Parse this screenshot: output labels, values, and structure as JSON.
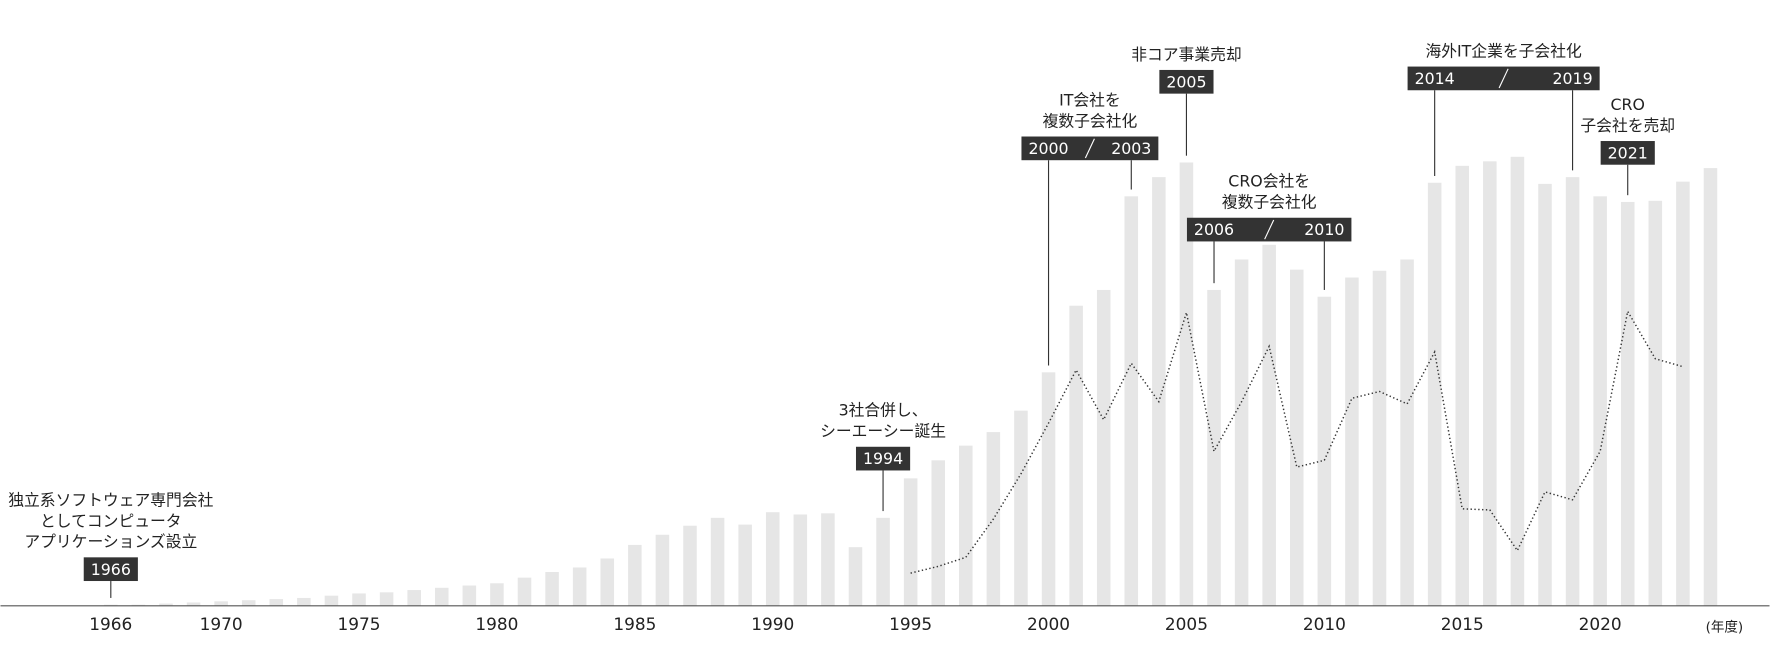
{
  "chart_data": {
    "type": "bar",
    "x_label": "(年度)",
    "x": [
      1966,
      1967,
      1968,
      1969,
      1970,
      1971,
      1972,
      1973,
      1974,
      1975,
      1976,
      1977,
      1978,
      1979,
      1980,
      1981,
      1982,
      1983,
      1984,
      1985,
      1986,
      1987,
      1988,
      1989,
      1990,
      1991,
      1992,
      1993,
      1994,
      1995,
      1996,
      1997,
      1998,
      1999,
      2000,
      2001,
      2002,
      2003,
      2004,
      2005,
      2006,
      2007,
      2008,
      2009,
      2010,
      2011,
      2012,
      2013,
      2014,
      2015,
      2016,
      2017,
      2018,
      2019,
      2020,
      2021,
      2022,
      2023,
      2024
    ],
    "xlim": [
      1962,
      2025.2
    ],
    "xticks": [
      1966,
      1970,
      1975,
      1980,
      1985,
      1990,
      1995,
      2000,
      2005,
      2010,
      2015,
      2020
    ],
    "ylim": [
      0,
      500
    ],
    "series": [
      {
        "type": "bar",
        "color": "#e6e6e6",
        "values": [
          1,
          1,
          2,
          3,
          4,
          5,
          6,
          7,
          9,
          11,
          12,
          14,
          16,
          18,
          20,
          25,
          30,
          34,
          42,
          54,
          63,
          71,
          78,
          72,
          83,
          81,
          82,
          52,
          78,
          113,
          129,
          142,
          154,
          173,
          207,
          266,
          280,
          363,
          380,
          393,
          280,
          307,
          320,
          298,
          274,
          291,
          297,
          307,
          375,
          390,
          394,
          398,
          374,
          380,
          363,
          358,
          359,
          376,
          388
        ]
      },
      {
        "type": "line",
        "color": "#333333",
        "values": [
          null,
          null,
          null,
          null,
          null,
          null,
          null,
          null,
          null,
          null,
          null,
          null,
          null,
          null,
          null,
          null,
          null,
          null,
          null,
          null,
          null,
          null,
          null,
          null,
          null,
          null,
          null,
          null,
          null,
          29,
          35,
          43,
          77,
          117,
          162,
          209,
          165,
          215,
          181,
          260,
          137,
          181,
          230,
          123,
          129,
          184,
          190,
          179,
          225,
          86,
          85,
          49,
          101,
          94,
          137,
          261,
          219,
          212,
          null
        ]
      }
    ],
    "annotations": [
      {
        "text": [
          "独立系ソフトウェア専門会社",
          "としてコンピュータ",
          "アプリケーションズ設立"
        ],
        "years": [
          1966
        ]
      },
      {
        "text": [
          "3社合併し、",
          "シーエーシー誕生"
        ],
        "years": [
          1994
        ]
      },
      {
        "text": [
          "IT会社を",
          "複数子会社化"
        ],
        "years": [
          2000,
          2003
        ]
      },
      {
        "text": [
          "非コア事業売却"
        ],
        "years": [
          2005
        ]
      },
      {
        "text": [
          "CRO会社を",
          "複数子会社化"
        ],
        "years": [
          2006,
          2010
        ]
      },
      {
        "text": [
          "海外IT企業を子会社化"
        ],
        "years": [
          2014,
          2019
        ]
      },
      {
        "text": [
          "CRO",
          "子会社を売却"
        ],
        "years": [
          2021
        ]
      }
    ]
  }
}
